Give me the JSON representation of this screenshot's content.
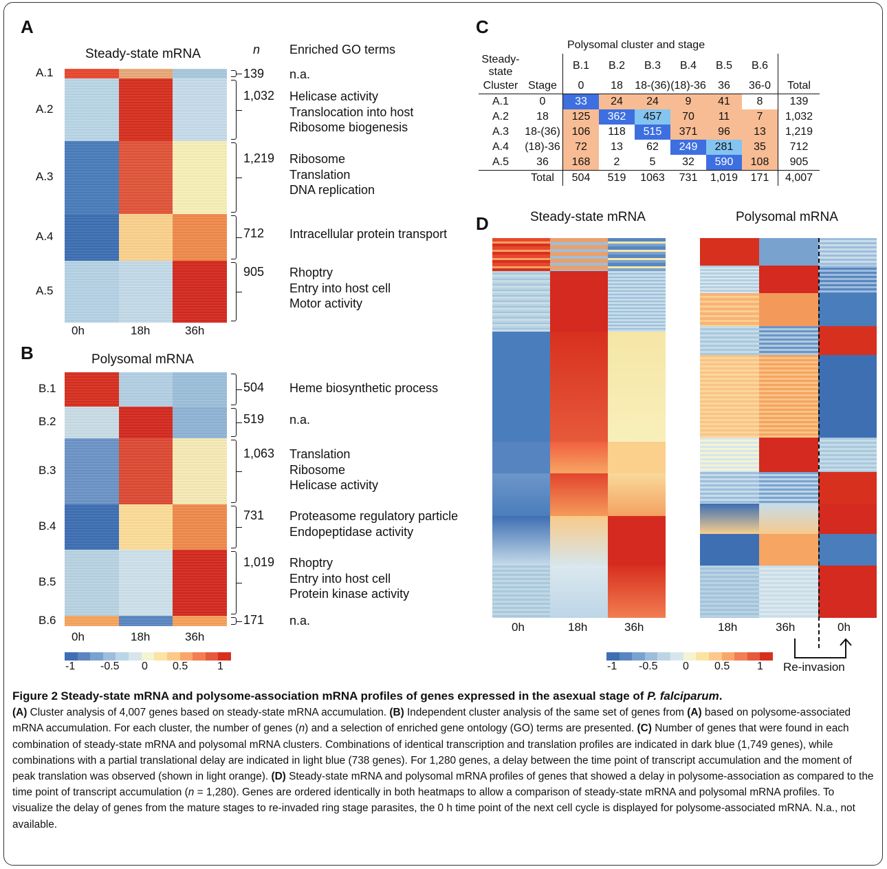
{
  "panels": {
    "A": {
      "letter": "A",
      "title": "Steady-state mRNA",
      "n_header": "n",
      "go_header": "Enriched GO terms",
      "x_labels": [
        "0h",
        "18h",
        "36h"
      ],
      "clusters": [
        {
          "label": "A.1",
          "n": "139",
          "go": [
            "n.a."
          ],
          "colors": [
            "#e8472e",
            "#e8a878",
            "#a9c8dc"
          ]
        },
        {
          "label": "A.2",
          "n": "1,032",
          "go": [
            "Helicase activity",
            "Translocation into host",
            "Ribosome biogenesis"
          ],
          "colors": [
            "#b9d6e6",
            "#d7301f",
            "#c6dce9"
          ]
        },
        {
          "label": "A.3",
          "n": "1,219",
          "go": [
            "Ribosome",
            "Translation",
            "DNA replication"
          ],
          "colors": [
            "#4a7dbb",
            "#e0553a",
            "#f8efb8"
          ]
        },
        {
          "label": "A.4",
          "n": "712",
          "go": [
            "Intracellular protein transport"
          ],
          "colors": [
            "#3e6fb3",
            "#fbd08c",
            "#f08a4b"
          ]
        },
        {
          "label": "A.5",
          "n": "905",
          "go": [
            "Rhoptry",
            "Entry into host cell",
            "Motor activity"
          ],
          "colors": [
            "#b5d2e4",
            "#c3dae8",
            "#d42a1f"
          ]
        }
      ]
    },
    "B": {
      "letter": "B",
      "title": "Polysomal mRNA",
      "x_labels": [
        "0h",
        "18h",
        "36h"
      ],
      "clusters": [
        {
          "label": "B.1",
          "n": "504",
          "go": [
            "Heme biosynthetic process"
          ],
          "colors": [
            "#d7301f",
            "#b3cfe2",
            "#9cbfda"
          ]
        },
        {
          "label": "B.2",
          "n": "519",
          "go": [
            "n.a."
          ],
          "colors": [
            "#c9dde6",
            "#d42a1f",
            "#8fb4d6"
          ]
        },
        {
          "label": "B.3",
          "n": "1,063",
          "go": [
            "Translation",
            "Ribosome",
            "Helicase activity"
          ],
          "colors": [
            "#6b94c6",
            "#dd4a33",
            "#f6eab6"
          ]
        },
        {
          "label": "B.4",
          "n": "731",
          "go": [
            "Proteasome regulatory particle",
            "Endopeptidase activity"
          ],
          "colors": [
            "#3e6fb3",
            "#fcdc98",
            "#f08a4b"
          ]
        },
        {
          "label": "B.5",
          "n": "1,019",
          "go": [
            "Rhoptry",
            "Entry into host cell",
            "Protein kinase activity"
          ],
          "colors": [
            "#b8d3e3",
            "#cde0ea",
            "#d42a1f"
          ]
        },
        {
          "label": "B.6",
          "n": "171",
          "go": [
            "n.a."
          ],
          "colors": [
            "#f5a45e",
            "#5a86c0",
            "#f5a05a"
          ]
        }
      ]
    },
    "C": {
      "letter": "C",
      "top_header": "Polysomal cluster and stage",
      "row_header_1": [
        "Steady-state",
        ""
      ],
      "row_header_2": [
        "Cluster",
        "Stage"
      ],
      "col_clusters": [
        "B.1",
        "B.2",
        "B.3",
        "B.4",
        "B.5",
        "B.6"
      ],
      "col_stages": [
        "0",
        "18",
        "18-(36)",
        "(18)-36",
        "36",
        "36-0"
      ],
      "total_label": "Total",
      "rows": [
        {
          "cluster": "A.1",
          "stage": "0",
          "cells": [
            "33",
            "24",
            "24",
            "9",
            "41",
            "8"
          ],
          "total": "139",
          "fill": [
            "dark",
            "orange",
            "orange",
            "orange",
            "orange",
            "none"
          ]
        },
        {
          "cluster": "A.2",
          "stage": "18",
          "cells": [
            "125",
            "362",
            "457",
            "70",
            "11",
            "7"
          ],
          "total": "1,032",
          "fill": [
            "orange",
            "dark",
            "light",
            "orange",
            "orange",
            "orange"
          ]
        },
        {
          "cluster": "A.3",
          "stage": "18-(36)",
          "cells": [
            "106",
            "118",
            "515",
            "371",
            "96",
            "13"
          ],
          "total": "1,219",
          "fill": [
            "orange",
            "none",
            "dark",
            "orange",
            "orange",
            "orange"
          ]
        },
        {
          "cluster": "A.4",
          "stage": "(18)-36",
          "cells": [
            "72",
            "13",
            "62",
            "249",
            "281",
            "35"
          ],
          "total": "712",
          "fill": [
            "orange",
            "none",
            "none",
            "dark",
            "light",
            "orange"
          ]
        },
        {
          "cluster": "A.5",
          "stage": "36",
          "cells": [
            "168",
            "2",
            "5",
            "32",
            "590",
            "108"
          ],
          "total": "905",
          "fill": [
            "orange",
            "none",
            "none",
            "none",
            "dark",
            "orange"
          ]
        }
      ],
      "col_totals": [
        "504",
        "519",
        "1063",
        "731",
        "1,019",
        "171"
      ],
      "grand_total": "4,007",
      "colors": {
        "dark": "#3d6fe0",
        "light": "#84c4f0",
        "orange": "#f7bc94"
      }
    },
    "D": {
      "letter": "D",
      "title_left": "Steady-state mRNA",
      "title_right": "Polysomal mRNA",
      "x_labels_left": [
        "0h",
        "18h",
        "36h"
      ],
      "x_labels_right": [
        "18h",
        "36h",
        "0h"
      ],
      "reinvasion_label": "Re-invasion"
    }
  },
  "colorbar": {
    "ticks": [
      "-1",
      "-0.5",
      "0",
      "0.5",
      "1"
    ],
    "colors": [
      "#3e6fb3",
      "#5a86c0",
      "#7aa2cf",
      "#9dbddd",
      "#bcd5e6",
      "#d7e6ec",
      "#f4f3d2",
      "#fbe3a4",
      "#fcc98a",
      "#f9a66b",
      "#f27e52",
      "#e65a3c",
      "#d7301f"
    ]
  },
  "caption": {
    "figure": "Figure 2",
    "title": "Steady-state mRNA and polysome-association mRNA profiles of genes expressed in the asexual stage of ",
    "species": "P. falciparum",
    "A_tag": "(A)",
    "A_text": " Cluster analysis of 4,007 genes based on steady-state mRNA accumulation. ",
    "B_tag": "(B)",
    "B_text": " Independent cluster analysis of the same set of genes from ",
    "B_ref": "(A)",
    "B_text2": " based on polysome-associated mRNA accumulation. For each cluster, the number of genes (",
    "n_sym": "n",
    "B_text3": ") and a selection of enriched gene ontology (GO) terms are presented. ",
    "C_tag": "(C)",
    "C_text": " Number of genes that were found in each combination of steady-state mRNA and polysomal mRNA clusters. Combinations of identical transcription and translation profiles are indicated in dark blue (1,749 genes), while combinations with a partial translational delay are indicated in light blue (738 genes). For 1,280 genes, a delay between the time point of transcript accumulation and the moment of peak translation was observed (shown in light orange). ",
    "D_tag": "(D)",
    "D_text": " Steady-state mRNA and polysomal mRNA profiles of genes that showed a delay in polysome-association as compared to the time point of transcript accumulation (",
    "D_n": "n",
    "D_text2": " = 1,280). Genes are ordered identically in both heatmaps to allow a comparison of steady-state mRNA and polysomal mRNA profiles. To visualize the delay of genes from the mature stages to re-invaded ring stage parasites, the 0 h time point of the next cell cycle is displayed for polysome-associated mRNA. N.a., not available."
  }
}
